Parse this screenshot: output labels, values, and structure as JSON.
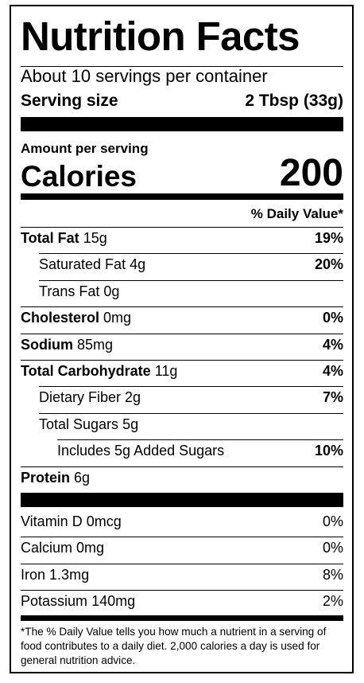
{
  "header": {
    "title": "Nutrition Facts",
    "servings": "About 10 servings per container",
    "serving_size_label": "Serving size",
    "serving_size": "2 Tbsp (33g)"
  },
  "calories": {
    "amount_label": "Amount per serving",
    "label": "Calories",
    "value": 200
  },
  "daily_value_header": "% Daily Value*",
  "nutrients": [
    {
      "name": "Total Fat",
      "amount": "15g",
      "dv": "19%"
    },
    {
      "name": "Saturated Fat",
      "amount": "4g",
      "dv": "20%"
    },
    {
      "name": "Trans Fat",
      "amount": "0g"
    },
    {
      "name": "Cholesterol",
      "amount": "0mg",
      "dv": "0%"
    },
    {
      "name": "Sodium",
      "amount": "85mg",
      "dv": "4%"
    },
    {
      "name": "Total Carbohydrate",
      "amount": "11g",
      "dv": "4%"
    },
    {
      "name": "Dietary Fiber",
      "amount": "2g",
      "dv": "7%"
    },
    {
      "name": "Total Sugars",
      "amount": "5g"
    },
    {
      "name": "Includes 5g Added Sugars",
      "dv": "10%"
    },
    {
      "name": "Protein",
      "amount": "6g"
    }
  ],
  "vitamins": [
    {
      "name": "Vitamin D",
      "amount": "0mcg",
      "dv": "0%"
    },
    {
      "name": "Calcium",
      "amount": "0mg",
      "dv": "0%"
    },
    {
      "name": "Iron",
      "amount": "1.3mg",
      "dv": "8%"
    },
    {
      "name": "Potassium",
      "amount": "140mg",
      "dv": "2%"
    }
  ],
  "footnote": "*The % Daily Value tells you how much a nutrient in a serving of food contributes to a daily diet. 2,000 calories a day is used for general nutrition advice."
}
